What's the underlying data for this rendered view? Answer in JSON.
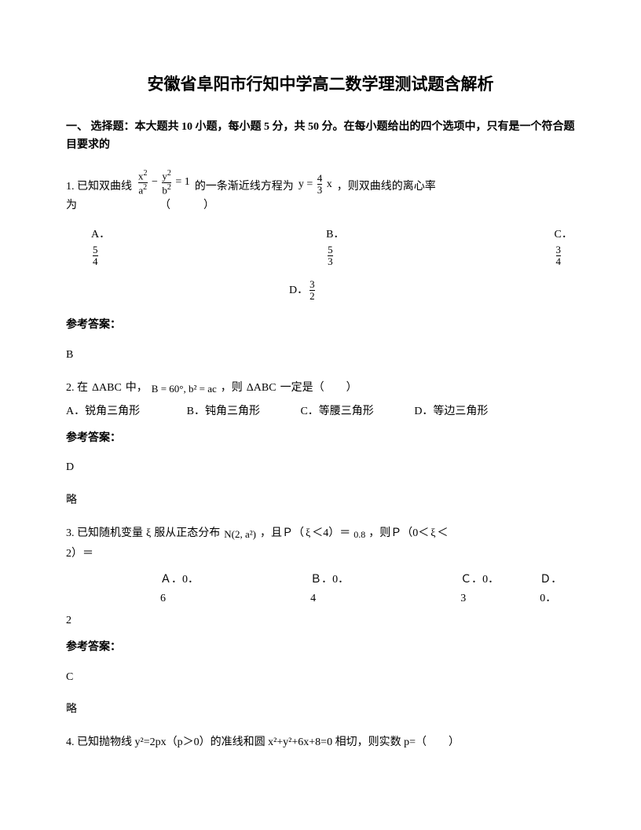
{
  "title": "安徽省阜阳市行知中学高二数学理测试题含解析",
  "sectionHeading": "一、 选择题：本大题共 10 小题，每小题 5 分，共 50 分。在每小题给出的四个选项中，只有是一个符合题目要求的",
  "q1": {
    "prefix": "1. 已知双曲线",
    "mid1": "的一条渐近线方程为",
    "mid2": "，则双曲线的离心率",
    "line2": "为　　　　　　　　（　　　）",
    "eq1_a": "x",
    "eq1_b": "a",
    "eq1_c": "y",
    "eq1_d": "b",
    "eq1_rhs": "= 1",
    "eq2_lhs": "y =",
    "eq2_num": "4",
    "eq2_den": "3",
    "eq2_x": "x",
    "optA_label": "A．",
    "optA_num": "5",
    "optA_den": "4",
    "optB_label": "B．",
    "optB_num": "5",
    "optB_den": "3",
    "optC_label": "C．",
    "optC_num": "3",
    "optC_den": "4",
    "optD_label": "D．",
    "optD_num": "3",
    "optD_den": "2"
  },
  "answerLabel": "参考答案：",
  "q1Answer": "B",
  "q2": {
    "prefix": "2. 在",
    "tri": "ΔABC",
    "mid1": "中，",
    "cond": "B = 60°, b² = ac",
    "mid2": "，则",
    "mid3": "一定是（　　）",
    "optA": "A．锐角三角形",
    "optB": "B．钝角三角形",
    "optC": "C．等腰三角形",
    "optD": "D．等边三角形"
  },
  "q2Answer": "D",
  "q2Note": "略",
  "q3": {
    "prefix": "3. 已知随机变量",
    "xi": "ξ",
    "mid1": "服从正态分布",
    "dist": "N(2, a²)",
    "mid2": "，且Ｐ（",
    "cond1": "＜4）＝",
    "val1": "0.8",
    "mid3": "，则Ｐ（0＜",
    "cond2": "＜",
    "line2": "2）＝",
    "optA": "Ａ．0．6",
    "optB": "Ｂ．0．4",
    "optC": "Ｃ．0．3",
    "optD": "Ｄ．0．",
    "optD2": "2"
  },
  "q3Answer": "C",
  "q3Note": "略",
  "q4": {
    "text": "4. 已知抛物线 y²=2px（p＞0）的准线和圆 x²+y²+6x+8=0 相切，则实数 p=（　　）"
  }
}
